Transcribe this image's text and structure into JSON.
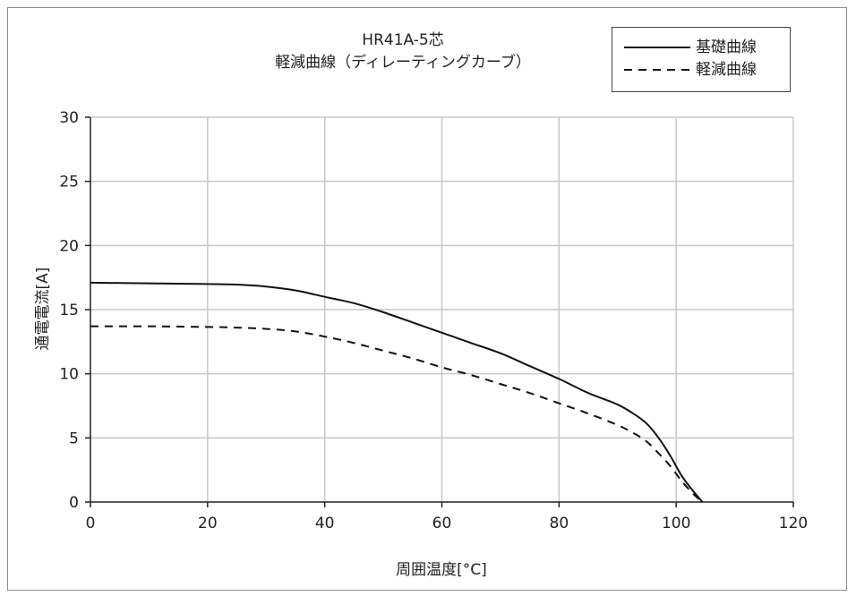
{
  "chart_data": {
    "type": "line",
    "title": "HR41A-5芯",
    "subtitle": "軽減曲線（ディレーティングカーブ）",
    "xlabel": "周囲温度[°C]",
    "ylabel": "通電電流[A]",
    "xlim": [
      0,
      120
    ],
    "ylim": [
      0,
      30
    ],
    "xticks": [
      0,
      20,
      40,
      60,
      80,
      100,
      120
    ],
    "yticks": [
      0,
      5,
      10,
      15,
      20,
      25,
      30
    ],
    "grid": true,
    "legend_position": "top-right",
    "series": [
      {
        "name": "基礎曲線",
        "line_style": "solid",
        "color": "#111111",
        "x": [
          0,
          10,
          20,
          25,
          30,
          35,
          40,
          45,
          50,
          55,
          60,
          65,
          70,
          75,
          80,
          85,
          90,
          93,
          95,
          97,
          99,
          101,
          103,
          104.5
        ],
        "y": [
          17.1,
          17.05,
          17.0,
          16.95,
          16.8,
          16.5,
          16.0,
          15.5,
          14.8,
          14.0,
          13.2,
          12.4,
          11.6,
          10.6,
          9.6,
          8.5,
          7.6,
          6.8,
          6.1,
          5.0,
          3.6,
          2.0,
          0.8,
          0.0
        ]
      },
      {
        "name": "軽減曲線",
        "line_style": "dashed",
        "color": "#111111",
        "x": [
          0,
          10,
          20,
          25,
          30,
          35,
          40,
          45,
          50,
          55,
          60,
          65,
          70,
          75,
          80,
          85,
          90,
          93,
          95,
          97,
          99,
          101,
          103,
          104.5
        ],
        "y": [
          13.7,
          13.7,
          13.65,
          13.6,
          13.5,
          13.3,
          12.9,
          12.4,
          11.8,
          11.2,
          10.5,
          9.9,
          9.2,
          8.5,
          7.7,
          6.9,
          6.0,
          5.3,
          4.7,
          3.8,
          2.8,
          1.6,
          0.6,
          0.0
        ]
      }
    ]
  }
}
